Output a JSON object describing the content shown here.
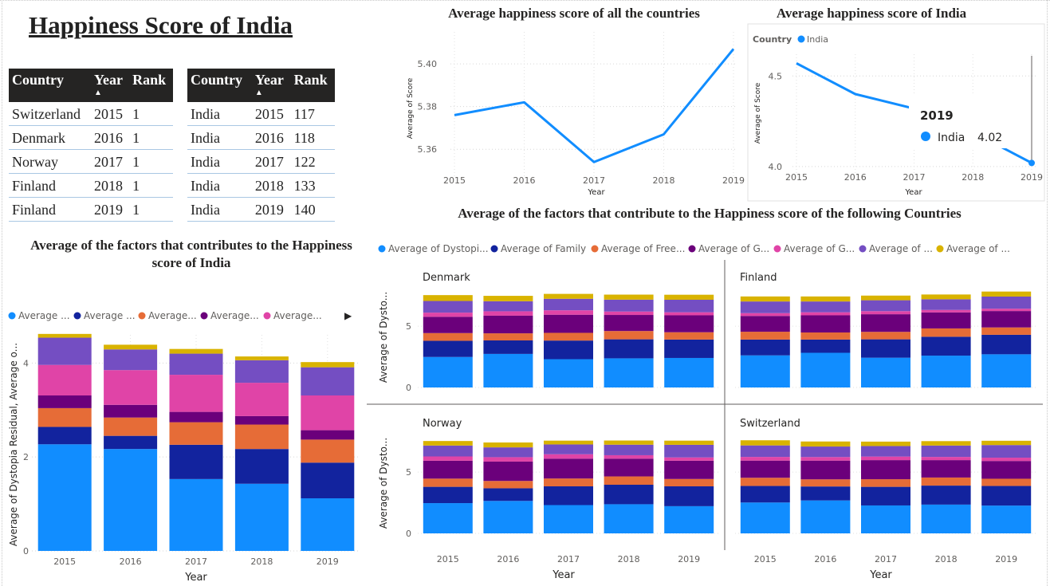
{
  "page": {
    "title": "Happiness Score of India"
  },
  "tables": [
    {
      "headers": [
        "Country",
        "Year",
        "Rank"
      ],
      "sort_column": "Year",
      "rows": [
        [
          "Switzerland",
          "2015",
          "1"
        ],
        [
          "Denmark",
          "2016",
          "1"
        ],
        [
          "Norway",
          "2017",
          "1"
        ],
        [
          "Finland",
          "2018",
          "1"
        ],
        [
          "Finland",
          "2019",
          "1"
        ]
      ]
    },
    {
      "headers": [
        "Country",
        "Year",
        "Rank"
      ],
      "sort_column": "Year",
      "rows": [
        [
          "India",
          "2015",
          "117"
        ],
        [
          "India",
          "2016",
          "118"
        ],
        [
          "India",
          "2017",
          "122"
        ],
        [
          "India",
          "2018",
          "133"
        ],
        [
          "India",
          "2019",
          "140"
        ]
      ]
    }
  ],
  "chart_data": [
    {
      "id": "all_countries",
      "type": "line",
      "title": "Average happiness score of all the countries",
      "xlabel": "Year",
      "ylabel": "Average of Score",
      "x": [
        "2015",
        "2016",
        "2017",
        "2018",
        "2019"
      ],
      "yticks": [
        "5.36",
        "5.38",
        "5.40"
      ],
      "ylim": [
        5.347,
        5.415
      ],
      "series": [
        {
          "values": [
            5.376,
            5.382,
            5.354,
            5.367,
            5.407
          ],
          "color": "#118DFF"
        }
      ],
      "grid": "dotted"
    },
    {
      "id": "india_score",
      "type": "line",
      "title": "Average happiness score of India",
      "xlabel": "Year",
      "ylabel": "Average of Score",
      "legend_title": "Country",
      "legend": [
        "India"
      ],
      "x": [
        "2015",
        "2016",
        "2017",
        "2018",
        "2019"
      ],
      "yticks": [
        "4.0",
        "4.5"
      ],
      "ylim": [
        3.96,
        4.62
      ],
      "series": [
        {
          "name": "India",
          "values": [
            4.57,
            4.4,
            4.32,
            4.19,
            4.02
          ],
          "color": "#118DFF"
        }
      ],
      "tooltip": {
        "title": "2019",
        "label": "India",
        "value": "4.02"
      }
    },
    {
      "id": "india_factors",
      "type": "bar",
      "stacked": true,
      "title": "Average of the factors that contributes to the Happiness score of India",
      "xlabel": "Year",
      "ylabel": "Average of Dystopia Residual, Average o...",
      "legend": [
        "Average ...",
        "Average ...",
        "Average...",
        "Average...",
        "Average..."
      ],
      "legend_more": "▶",
      "categories": [
        "2015",
        "2016",
        "2017",
        "2018",
        "2019"
      ],
      "yticks": [
        "0",
        "2",
        "4"
      ],
      "ylim": [
        0,
        4.6
      ],
      "series": [
        {
          "color": "#118DFF",
          "values": [
            2.27,
            2.17,
            1.53,
            1.43,
            1.12
          ]
        },
        {
          "color": "#12239E",
          "values": [
            0.37,
            0.28,
            0.73,
            0.74,
            0.76
          ]
        },
        {
          "color": "#E66C37",
          "values": [
            0.4,
            0.39,
            0.48,
            0.52,
            0.49
          ]
        },
        {
          "color": "#6B007B",
          "values": [
            0.27,
            0.27,
            0.22,
            0.18,
            0.2
          ]
        },
        {
          "color": "#E044A7",
          "values": [
            0.65,
            0.74,
            0.79,
            0.71,
            0.74
          ]
        },
        {
          "color": "#744EC2",
          "values": [
            0.58,
            0.44,
            0.45,
            0.48,
            0.6
          ]
        },
        {
          "color": "#D9B300",
          "values": [
            0.08,
            0.1,
            0.1,
            0.08,
            0.11
          ]
        }
      ]
    },
    {
      "id": "country_factors",
      "type": "bar",
      "stacked": true,
      "small_multiples": true,
      "title": "Average of the factors that contribute to the Happiness score of the following Countries",
      "xlabel": "Year",
      "ylabel": "Average of Dysto...",
      "legend": [
        "Average of Dystopi...",
        "Average of Family",
        "Average of Free...",
        "Average of G...",
        "Average of G...",
        "Average of ...",
        "Average of ..."
      ],
      "colors": [
        "#118DFF",
        "#12239E",
        "#E66C37",
        "#6B007B",
        "#E044A7",
        "#744EC2",
        "#D9B300"
      ],
      "categories": [
        "2015",
        "2016",
        "2017",
        "2018",
        "2019"
      ],
      "yticks": [
        "0",
        "5"
      ],
      "ylim": [
        0,
        8.2
      ],
      "panels": [
        {
          "name": "Denmark",
          "stacks": [
            [
              2.49,
              1.32,
              0.63,
              1.33,
              0.34,
              0.95,
              0.48
            ],
            [
              2.74,
              1.1,
              0.58,
              1.44,
              0.36,
              0.82,
              0.44
            ],
            [
              2.31,
              1.52,
              0.63,
              1.48,
              0.36,
              0.94,
              0.4
            ],
            [
              2.38,
              1.55,
              0.68,
              1.31,
              0.28,
              0.97,
              0.41
            ],
            [
              2.41,
              1.5,
              0.6,
              1.38,
              0.25,
              1.02,
              0.41
            ]
          ]
        },
        {
          "name": "Finland",
          "stacks": [
            [
              2.62,
              1.29,
              0.64,
              1.29,
              0.23,
              0.95,
              0.41
            ],
            [
              2.83,
              1.08,
              0.58,
              1.4,
              0.25,
              0.88,
              0.41
            ],
            [
              2.43,
              1.5,
              0.61,
              1.44,
              0.25,
              0.89,
              0.38
            ],
            [
              2.6,
              1.54,
              0.68,
              1.31,
              0.2,
              0.87,
              0.39
            ],
            [
              2.71,
              1.59,
              0.6,
              1.34,
              0.19,
              0.99,
              0.41
            ]
          ]
        },
        {
          "name": "Norway",
          "stacks": [
            [
              2.47,
              1.33,
              0.67,
              1.46,
              0.35,
              0.89,
              0.37
            ],
            [
              2.65,
              1.03,
              0.6,
              1.58,
              0.36,
              0.8,
              0.4
            ],
            [
              2.31,
              1.53,
              0.64,
              1.62,
              0.36,
              0.8,
              0.31
            ],
            [
              2.38,
              1.59,
              0.68,
              1.45,
              0.28,
              0.86,
              0.34
            ],
            [
              2.22,
              1.62,
              0.6,
              1.49,
              0.27,
              1.03,
              0.34
            ]
          ]
        },
        {
          "name": "Switzerland",
          "stacks": [
            [
              2.52,
              1.35,
              0.67,
              1.4,
              0.3,
              0.94,
              0.42
            ],
            [
              2.69,
              1.14,
              0.58,
              1.53,
              0.29,
              0.86,
              0.41
            ],
            [
              2.28,
              1.52,
              0.62,
              1.56,
              0.29,
              0.86,
              0.36
            ],
            [
              2.35,
              1.55,
              0.66,
              1.42,
              0.26,
              0.93,
              0.36
            ],
            [
              2.27,
              1.6,
              0.59,
              1.45,
              0.27,
              1.03,
              0.35
            ]
          ]
        }
      ]
    }
  ]
}
